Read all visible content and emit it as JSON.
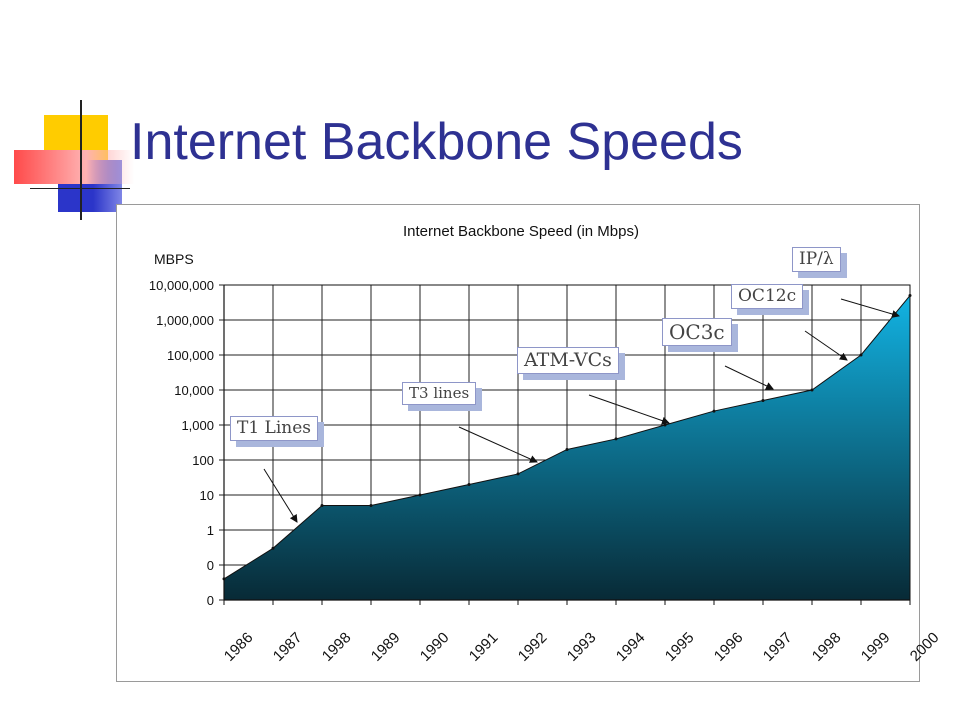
{
  "slide": {
    "title": "Internet Backbone Speeds"
  },
  "colors": {
    "title": "#2e3192",
    "area_top": "#12b3e3",
    "area_bottom": "#082a36"
  },
  "chart_data": {
    "type": "area",
    "title": "Internet Backbone Speed (in Mbps)",
    "ylabel": "MBPS",
    "xlabel": "",
    "categories": [
      "1986",
      "1987",
      "1998",
      "1989",
      "1990",
      "1991",
      "1992",
      "1993",
      "1994",
      "1995",
      "1996",
      "1997",
      "1998",
      "1999",
      "2000"
    ],
    "yticks": [
      "10,000,000",
      "1,000,000",
      "100,000",
      "10,000",
      "1,000",
      "100",
      "10",
      "1",
      "0",
      "0"
    ],
    "grid": true,
    "series": [
      {
        "values": [
          0.04,
          0.3,
          5,
          5,
          10,
          20,
          40,
          200,
          400,
          1000,
          2500,
          5000,
          10000,
          100000,
          5000000
        ]
      }
    ],
    "annotations": [
      {
        "label": "T1 Lines",
        "points_to": "1988"
      },
      {
        "label": "T3 lines",
        "points_to": "1993"
      },
      {
        "label": "ATM-VCs",
        "points_to": "1995"
      },
      {
        "label": "OC3c",
        "points_to": "1997"
      },
      {
        "label": "OC12c",
        "points_to": "1999"
      },
      {
        "label": "IP/λ",
        "points_to": "2000"
      }
    ]
  }
}
